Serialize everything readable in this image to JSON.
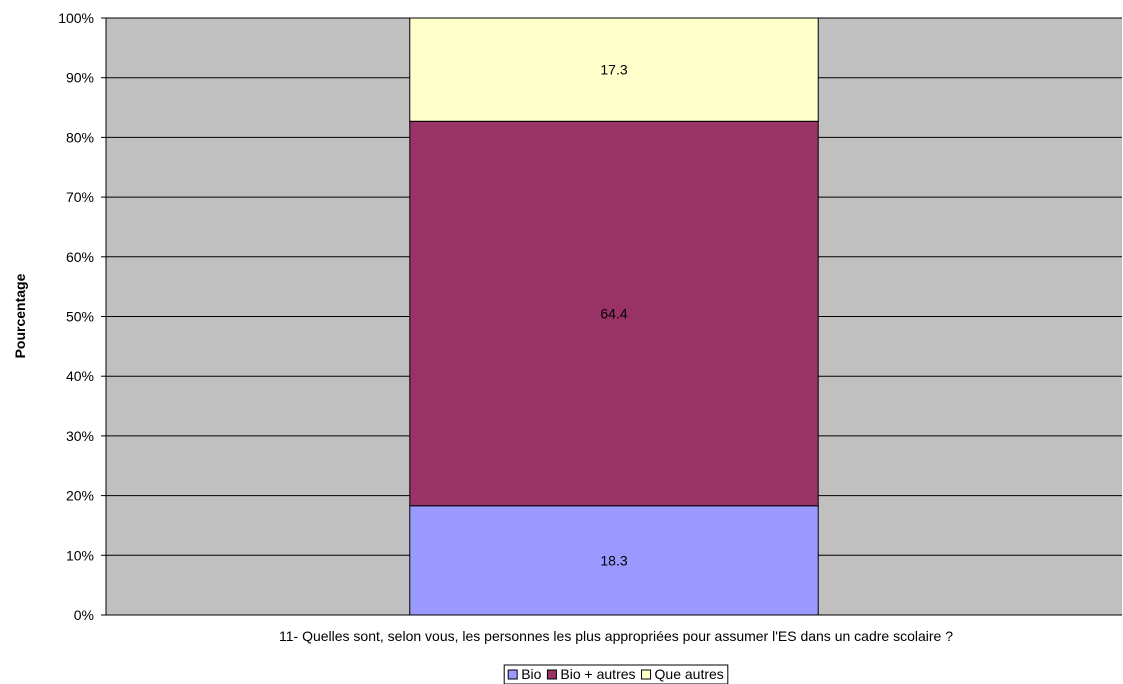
{
  "chart_data": {
    "type": "bar",
    "stacked": true,
    "percent": true,
    "categories": [
      ""
    ],
    "series": [
      {
        "name": "Bio",
        "values": [
          18.3
        ],
        "color": "#9999ff"
      },
      {
        "name": "Bio + autres",
        "values": [
          64.4
        ],
        "color": "#993366"
      },
      {
        "name": "Que autres",
        "values": [
          17.3
        ],
        "color": "#ffffcc"
      }
    ],
    "ylabel": "Pourcentage",
    "xlabel": "11- Quelles sont, selon vous, les personnes les plus appropriées pour assumer l'ES dans un cadre scolaire ?",
    "ylim": [
      0,
      100
    ],
    "yticks": [
      "0%",
      "10%",
      "20%",
      "30%",
      "40%",
      "50%",
      "60%",
      "70%",
      "80%",
      "90%",
      "100%"
    ],
    "grid": true,
    "legend": "bottom",
    "plot_background": "#c0c0c0"
  }
}
